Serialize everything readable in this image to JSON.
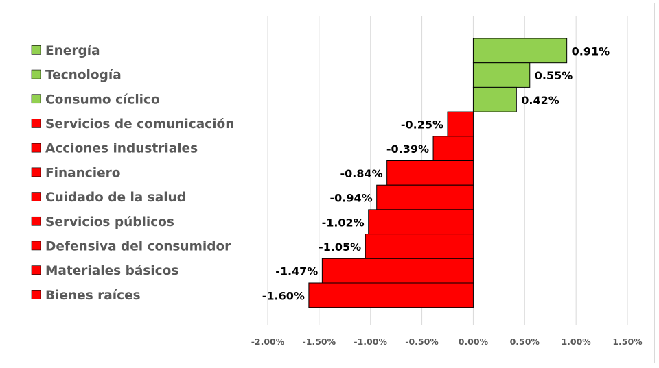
{
  "chart_data": {
    "type": "bar",
    "orientation": "horizontal",
    "title": "",
    "xlabel": "",
    "ylabel": "",
    "categories": [
      "Energía",
      "Tecnología",
      "Consumo cíclico",
      "Servicios de comunicación",
      "Acciones industriales",
      "Financiero",
      "Cuidado de la salud",
      "Servicios públicos",
      "Defensiva del consumidor",
      "Materiales básicos",
      "Bienes raíces"
    ],
    "values": [
      0.91,
      0.55,
      0.42,
      -0.25,
      -0.39,
      -0.84,
      -0.94,
      -1.02,
      -1.05,
      -1.47,
      -1.6
    ],
    "value_labels": [
      "0.91%",
      "0.55%",
      "0.42%",
      "-0.25%",
      "-0.39%",
      "-0.84%",
      "-0.94%",
      "-1.02%",
      "-1.05%",
      "-1.47%",
      "-1.60%"
    ],
    "xlim": [
      -2.0,
      1.5
    ],
    "x_ticks": [
      -2.0,
      -1.5,
      -1.0,
      -0.5,
      0.0,
      0.5,
      1.0,
      1.5
    ],
    "x_tick_labels": [
      "-2.00%",
      "-1.50%",
      "-1.00%",
      "-0.50%",
      "0.00%",
      "0.50%",
      "1.00%",
      "1.50%"
    ],
    "grid": "vertical",
    "legend_position": "left",
    "colors": {
      "positive": "#92d050",
      "negative": "#ff0000",
      "bar_border": "#000000",
      "legend_text": "#595959",
      "tick_text": "#595959",
      "value_text": "#000000",
      "gridline": "#d9d9d9"
    }
  }
}
